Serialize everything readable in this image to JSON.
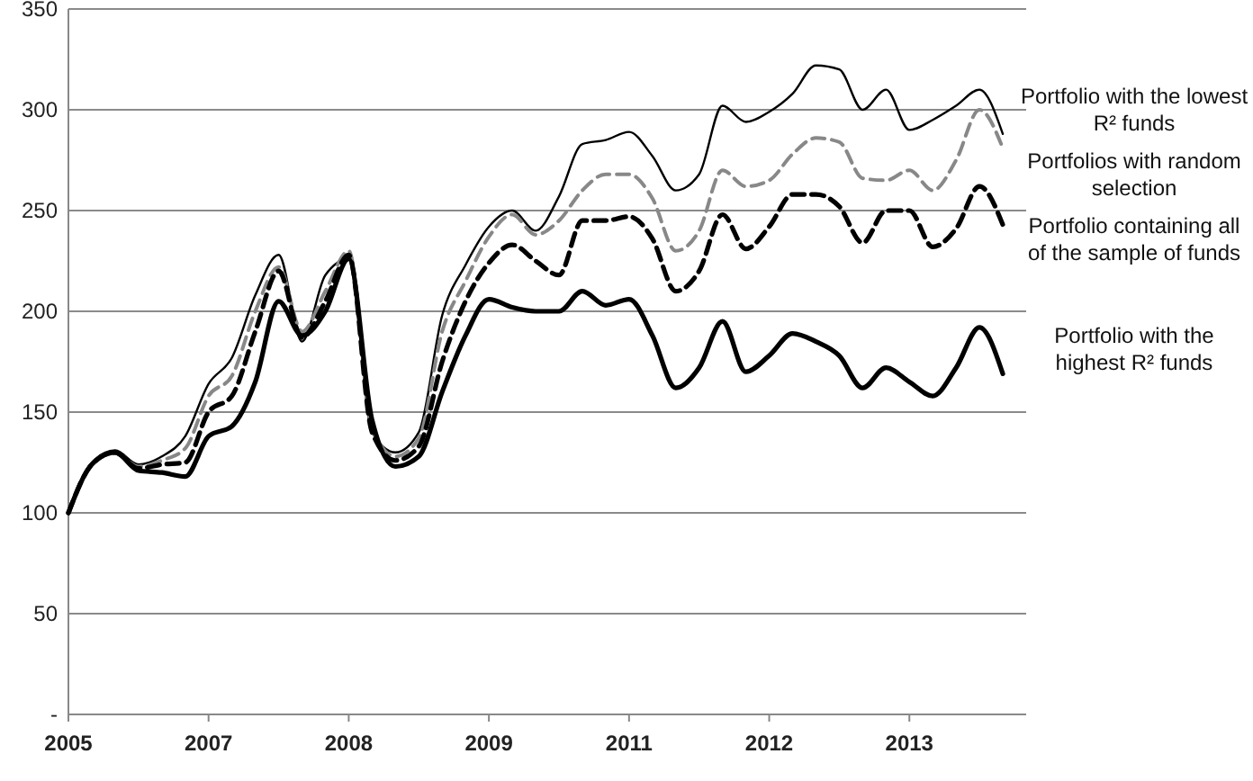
{
  "chart_data": {
    "type": "line",
    "categories": [
      "2005",
      null,
      null,
      null,
      null,
      null,
      "2007",
      null,
      null,
      null,
      null,
      null,
      "2008",
      null,
      null,
      null,
      null,
      null,
      "2009",
      null,
      null,
      null,
      null,
      null,
      "2011",
      null,
      null,
      null,
      null,
      null,
      "2012",
      null,
      null,
      null,
      null,
      null,
      "2013",
      null,
      null,
      null,
      null,
      null
    ],
    "series": [
      {
        "name": "Portfolio with the lowest R² funds",
        "color": "#000000",
        "line_style": "solid",
        "values": [
          100,
          125,
          131,
          124,
          128,
          138,
          164,
          177,
          208,
          228,
          185,
          218,
          226,
          140,
          130,
          140,
          198,
          223,
          242,
          250,
          240,
          257,
          283,
          285,
          289,
          277,
          260,
          268,
          302,
          294,
          299,
          308,
          322,
          320,
          300,
          310,
          290,
          295,
          302,
          310,
          288,
          null
        ]
      },
      {
        "name": "Portfolios with random selection",
        "color": "#888888",
        "line_style": "dashed",
        "values": [
          100,
          124,
          130,
          123,
          126,
          132,
          158,
          168,
          200,
          222,
          190,
          210,
          230,
          142,
          128,
          137,
          190,
          215,
          237,
          248,
          238,
          245,
          260,
          268,
          268,
          256,
          230,
          240,
          270,
          262,
          265,
          278,
          286,
          284,
          266,
          265,
          270,
          260,
          275,
          300,
          281,
          null
        ]
      },
      {
        "name": "Portfolio containing all of the sample of funds",
        "color": "#000000",
        "line_style": "dashed",
        "values": [
          100,
          124,
          130,
          122,
          124,
          125,
          150,
          158,
          190,
          220,
          187,
          205,
          228,
          140,
          126,
          133,
          175,
          205,
          224,
          233,
          225,
          218,
          245,
          245,
          247,
          236,
          210,
          220,
          248,
          231,
          242,
          258,
          258,
          252,
          234,
          250,
          250,
          232,
          241,
          262,
          243,
          null
        ]
      },
      {
        "name": "Portfolio  with the highest R² funds",
        "color": "#000000",
        "line_style": "solid",
        "values": [
          100,
          124,
          130,
          121,
          120,
          118,
          138,
          143,
          165,
          205,
          188,
          200,
          226,
          146,
          123,
          128,
          160,
          188,
          206,
          202,
          200,
          200,
          210,
          203,
          206,
          188,
          162,
          172,
          195,
          170,
          178,
          189,
          185,
          178,
          162,
          172,
          165,
          158,
          172,
          192,
          169,
          null
        ]
      }
    ],
    "ylim": [
      0,
      350
    ],
    "yticks": [
      {
        "value": 0,
        "label": "-"
      },
      50,
      100,
      150,
      200,
      250,
      300,
      350
    ],
    "grid": "y",
    "marker": "none"
  }
}
